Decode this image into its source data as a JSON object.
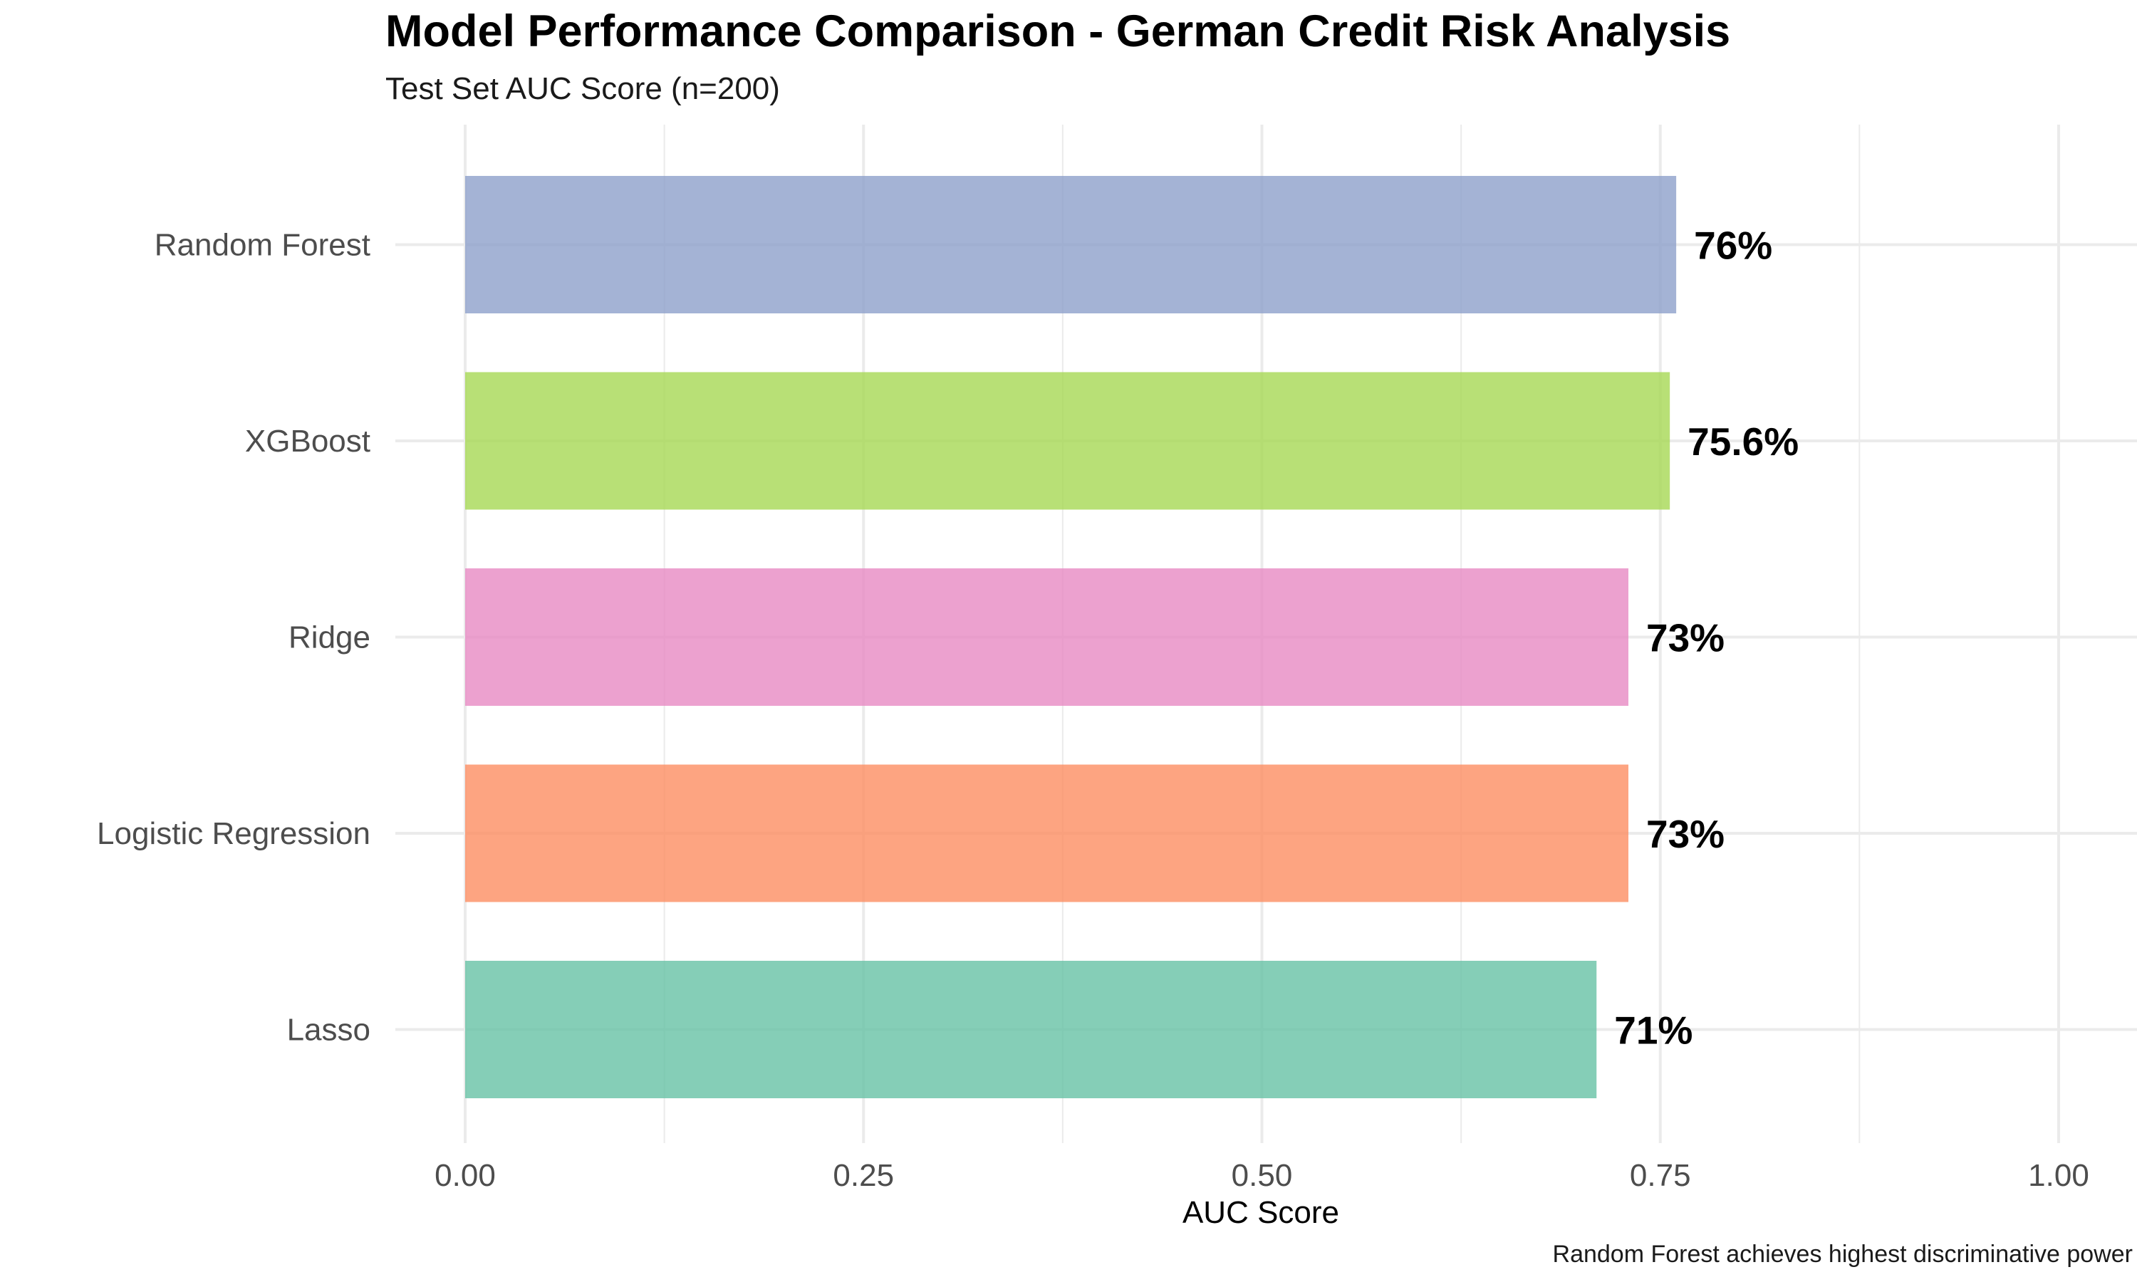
{
  "chart_data": {
    "type": "bar",
    "orientation": "horizontal",
    "title": "Model Performance Comparison - German Credit Risk Analysis",
    "subtitle": "Test Set AUC Score (n=200)",
    "xlabel": "AUC Score",
    "ylabel": "",
    "caption": "Random Forest achieves highest discriminative power",
    "xlim": [
      0,
      1
    ],
    "x_ticks": [
      0,
      0.25,
      0.5,
      0.75,
      1
    ],
    "x_tick_labels": [
      "0.00",
      "0.25",
      "0.50",
      "0.75",
      "1.00"
    ],
    "grid": true,
    "legend": "none",
    "categories": [
      "Random Forest",
      "XGBoost",
      "Ridge",
      "Logistic Regression",
      "Lasso"
    ],
    "values": [
      0.76,
      0.756,
      0.73,
      0.73,
      0.71
    ],
    "data_labels": [
      "76%",
      "75.6%",
      "73%",
      "73%",
      "71%"
    ],
    "colors": [
      "#8da0cb",
      "#a6d854",
      "#e78ac3",
      "#fc8d62",
      "#66c2a5"
    ]
  }
}
